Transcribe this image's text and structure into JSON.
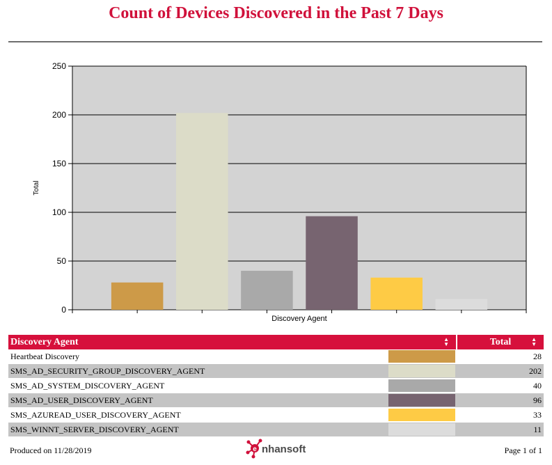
{
  "report": {
    "title": "Count of Devices Discovered in the Past 7 Days",
    "produced": "Produced on 11/28/2019",
    "page": "Page 1 of 1",
    "logo_text": "nhansoft"
  },
  "chart_data": {
    "type": "bar",
    "xlabel": "Discovery Agent",
    "ylabel": "Total",
    "ylim": [
      0,
      250
    ],
    "yticks": [
      0,
      50,
      100,
      150,
      200,
      250
    ],
    "grid": true,
    "categories": [
      "Heartbeat Discovery",
      "SMS_AD_SECURITY_GROUP_DISCOVERY_AGENT",
      "SMS_AD_SYSTEM_DISCOVERY_AGENT",
      "SMS_AD_USER_DISCOVERY_AGENT",
      "SMS_AZUREAD_USER_DISCOVERY_AGENT",
      "SMS_WINNT_SERVER_DISCOVERY_AGENT"
    ],
    "values": [
      28,
      202,
      40,
      96,
      33,
      11
    ],
    "colors": [
      "#cd9a48",
      "#dcdcc8",
      "#a9a9a9",
      "#776470",
      "#fecb45",
      "#dcdcdc"
    ],
    "plot_background": "#d3d3d3"
  },
  "table": {
    "headers": [
      "Discovery Agent",
      "Total"
    ],
    "rows": [
      {
        "agent": "Heartbeat Discovery",
        "total": "28"
      },
      {
        "agent": "SMS_AD_SECURITY_GROUP_DISCOVERY_AGENT",
        "total": "202"
      },
      {
        "agent": "SMS_AD_SYSTEM_DISCOVERY_AGENT",
        "total": "40"
      },
      {
        "agent": "SMS_AD_USER_DISCOVERY_AGENT",
        "total": "96"
      },
      {
        "agent": "SMS_AZUREAD_USER_DISCOVERY_AGENT",
        "total": "33"
      },
      {
        "agent": "SMS_WINNT_SERVER_DISCOVERY_AGENT",
        "total": "11"
      }
    ]
  }
}
